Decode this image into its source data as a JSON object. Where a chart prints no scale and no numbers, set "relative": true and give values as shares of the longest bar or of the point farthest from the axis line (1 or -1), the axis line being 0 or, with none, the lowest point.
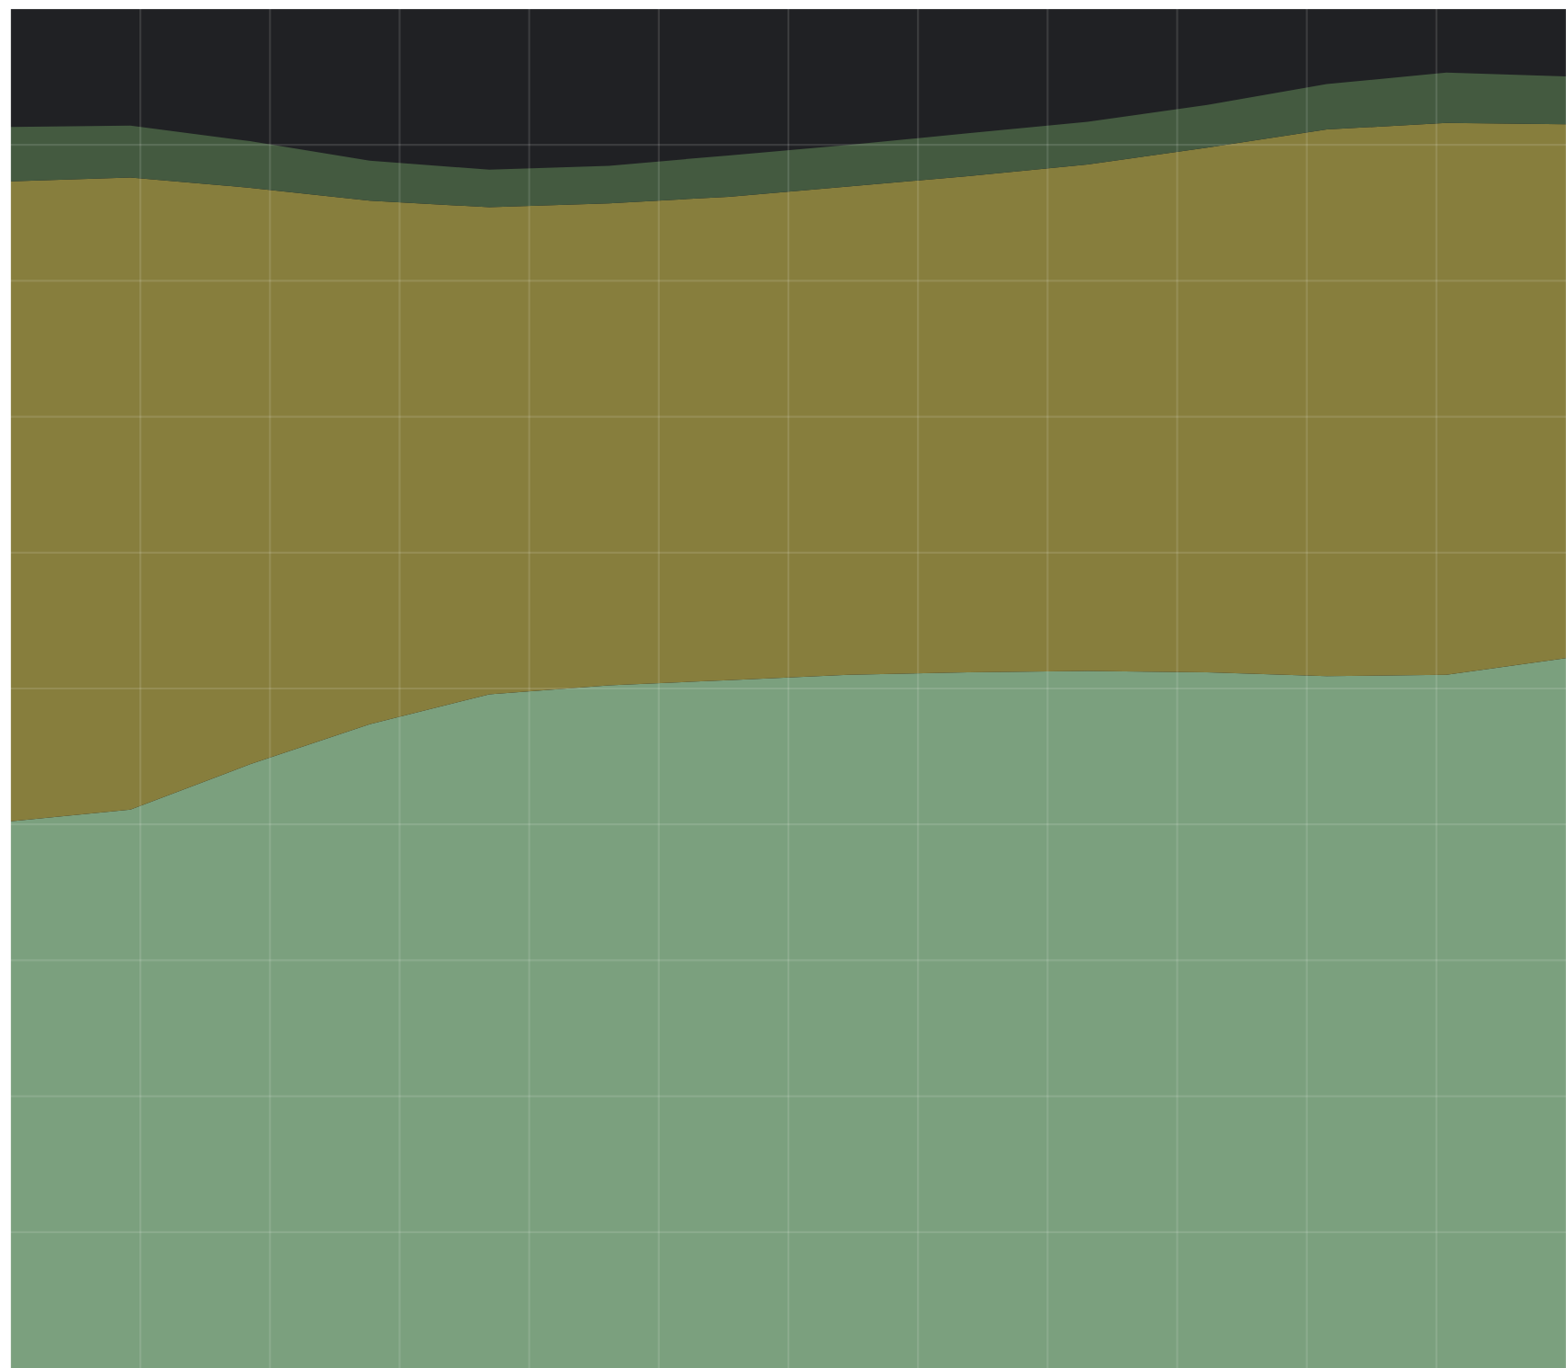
{
  "chart_data": {
    "type": "area",
    "stacked": true,
    "relative": true,
    "grid": true,
    "categories": [
      null,
      null,
      null,
      null,
      null,
      null,
      null,
      null,
      null,
      null,
      null,
      null,
      null,
      null
    ],
    "series": [
      {
        "color": "#7ba07e",
        "values": [
          0.422,
          0.431,
          0.466,
          0.497,
          0.52,
          0.527,
          0.531,
          0.535,
          0.537,
          0.538,
          0.537,
          0.534,
          0.535,
          0.548
        ]
      },
      {
        "color": "#877e3d",
        "values": [
          0.494,
          0.488,
          0.445,
          0.404,
          0.376,
          0.372,
          0.373,
          0.377,
          0.383,
          0.391,
          0.405,
          0.422,
          0.426,
          0.412
        ]
      },
      {
        "color": "#445a40",
        "values": [
          0.042,
          0.04,
          0.036,
          0.031,
          0.029,
          0.029,
          0.032,
          0.032,
          0.033,
          0.033,
          0.033,
          0.035,
          0.039,
          0.037
        ]
      }
    ]
  }
}
